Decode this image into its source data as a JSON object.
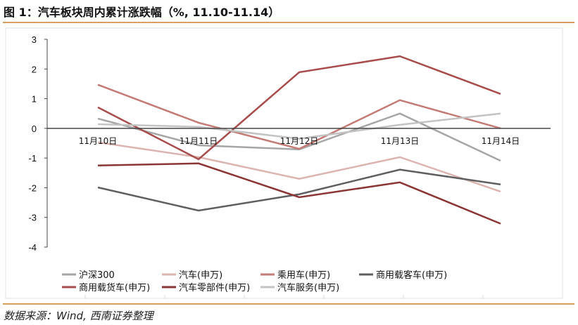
{
  "title": "图 1：汽车板块周内累计涨跌幅（%, 11.10-11.14）",
  "source": "数据来源：Wind, 西南证券整理",
  "chart_data": {
    "type": "line",
    "categories": [
      "11月10日",
      "11月11日",
      "11月12日",
      "11月13日",
      "11月14日"
    ],
    "ylim": [
      -4,
      3
    ],
    "yticks": [
      3,
      2,
      1,
      0,
      -1,
      -2,
      -3,
      -4
    ],
    "grid": false,
    "legend_position": "bottom",
    "series": [
      {
        "name": "沪深300",
        "color": "#a6a6a6",
        "values": [
          0.33,
          -0.57,
          -0.71,
          0.5,
          -1.09
        ]
      },
      {
        "name": "汽车(申万)",
        "color": "#dcb4b0",
        "values": [
          -0.47,
          -0.97,
          -1.7,
          -0.97,
          -2.13
        ]
      },
      {
        "name": "乘用车(申万)",
        "color": "#c47a75",
        "values": [
          1.47,
          0.19,
          -0.69,
          0.95,
          0.0
        ]
      },
      {
        "name": "商用载客车(申万)",
        "color": "#5f5f5f",
        "values": [
          -1.99,
          -2.77,
          -2.22,
          -1.39,
          -1.89
        ]
      },
      {
        "name": "商用载货车(申万)",
        "color": "#a84c4c",
        "values": [
          0.71,
          -1.04,
          1.89,
          2.43,
          1.16
        ]
      },
      {
        "name": "汽车零部件(申万)",
        "color": "#8b3535",
        "values": [
          -1.25,
          -1.18,
          -2.32,
          -1.82,
          -3.21
        ]
      },
      {
        "name": "汽车服务(申万)",
        "color": "#c3c3c3",
        "values": [
          0.14,
          0.05,
          -0.35,
          0.12,
          0.5
        ]
      }
    ]
  }
}
